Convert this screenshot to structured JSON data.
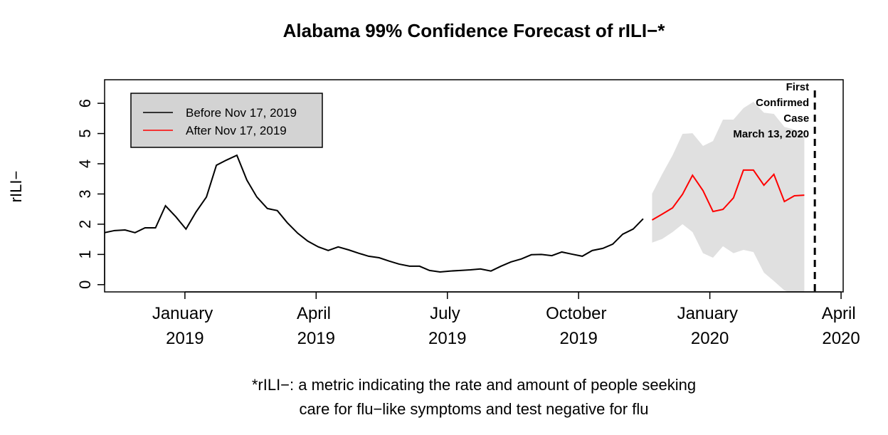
{
  "chart_data": {
    "type": "line",
    "title": "Alabama 99% Confidence Forecast of rILI−*",
    "y_label": "rILI−",
    "note": [
      "*rILI−: a metric indicating the rate and amount of people seeking",
      "care for flu−like symptoms and test negative for flu"
    ],
    "xlim": [
      2018.847,
      2020.254
    ],
    "ylim": [
      -0.24,
      6.78
    ],
    "xticks": [
      {
        "value": 2019.0,
        "label": "January 2019"
      },
      {
        "value": 2019.25,
        "label": "April 2019"
      },
      {
        "value": 2019.5,
        "label": "July 2019"
      },
      {
        "value": 2019.75,
        "label": "October 2019"
      },
      {
        "value": 2020.0,
        "label": "January 2020"
      },
      {
        "value": 2020.25,
        "label": "April 2020"
      }
    ],
    "yticks": [
      0,
      1,
      2,
      3,
      4,
      5,
      6
    ],
    "legend": "top-left",
    "series": [
      {
        "name": "Before Nov 17, 2019",
        "color": "#000000",
        "x": [
          2018.847,
          2018.866,
          2018.886,
          2018.905,
          2018.924,
          2018.944,
          2018.963,
          2018.983,
          2019.002,
          2019.021,
          2019.041,
          2019.06,
          2019.079,
          2019.099,
          2019.118,
          2019.137,
          2019.157,
          2019.176,
          2019.195,
          2019.215,
          2019.234,
          2019.254,
          2019.273,
          2019.292,
          2019.312,
          2019.331,
          2019.35,
          2019.37,
          2019.389,
          2019.408,
          2019.428,
          2019.447,
          2019.466,
          2019.486,
          2019.505,
          2019.525,
          2019.544,
          2019.563,
          2019.583,
          2019.602,
          2019.621,
          2019.641,
          2019.66,
          2019.679,
          2019.699,
          2019.718,
          2019.737,
          2019.757,
          2019.776,
          2019.796,
          2019.815,
          2019.834,
          2019.854,
          2019.873
        ],
        "values": [
          1.72,
          1.79,
          1.81,
          1.72,
          1.88,
          1.88,
          2.61,
          2.24,
          1.84,
          2.4,
          2.9,
          3.95,
          4.12,
          4.28,
          3.46,
          2.9,
          2.52,
          2.45,
          2.05,
          1.7,
          1.44,
          1.25,
          1.13,
          1.25,
          1.15,
          1.04,
          0.94,
          0.89,
          0.78,
          0.68,
          0.61,
          0.61,
          0.47,
          0.42,
          0.45,
          0.47,
          0.49,
          0.52,
          0.45,
          0.61,
          0.75,
          0.85,
          0.99,
          1.0,
          0.96,
          1.08,
          1.01,
          0.94,
          1.13,
          1.2,
          1.34,
          1.67,
          1.84,
          2.18
        ]
      },
      {
        "name": "After Nov 17, 2019",
        "color": "#ff0000",
        "band_color": "#e0e0e0",
        "x": [
          2019.89,
          2019.909,
          2019.929,
          2019.948,
          2019.967,
          2019.987,
          2020.006,
          2020.025,
          2020.045,
          2020.064,
          2020.083,
          2020.103,
          2020.122,
          2020.142,
          2020.161,
          2020.18
        ],
        "values": [
          2.14,
          2.33,
          2.54,
          2.99,
          3.62,
          3.11,
          2.42,
          2.49,
          2.87,
          3.79,
          3.79,
          3.29,
          3.65,
          2.75,
          2.94,
          2.96
        ],
        "upper": [
          3.01,
          3.65,
          4.28,
          4.99,
          5.01,
          4.59,
          4.75,
          5.46,
          5.46,
          5.84,
          6.05,
          5.69,
          5.65,
          5.22,
          5.13,
          5.06
        ],
        "lower": [
          1.39,
          1.51,
          1.74,
          2.0,
          1.74,
          1.04,
          0.89,
          1.27,
          1.04,
          1.15,
          1.08,
          0.4,
          0.12,
          -0.19,
          -0.3,
          -0.3
        ]
      }
    ],
    "event": {
      "x": 2020.2,
      "label": [
        "First",
        "Confirmed",
        "Case",
        "March 13, 2020"
      ]
    }
  }
}
